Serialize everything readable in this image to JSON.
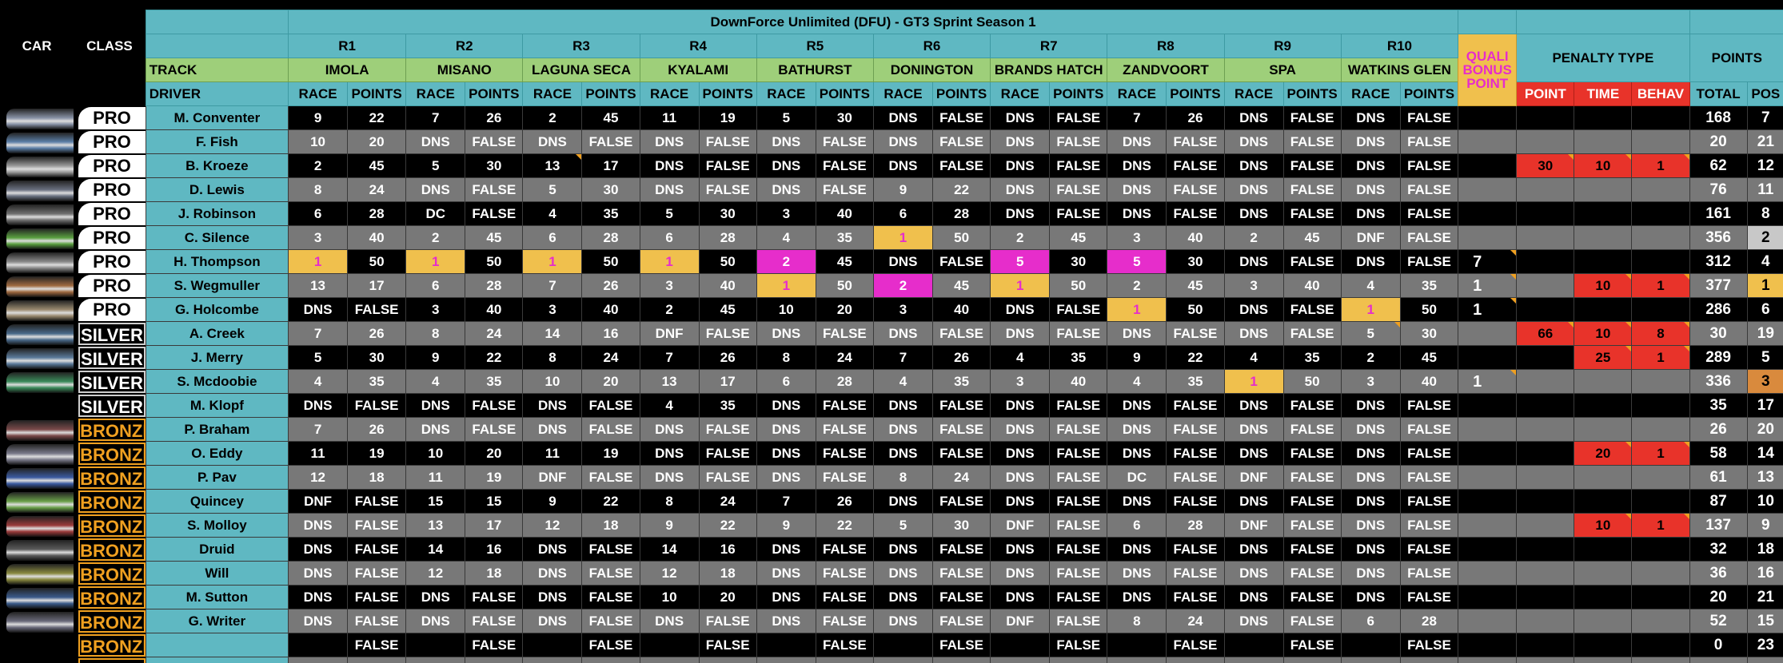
{
  "title": "DownForce Unlimited (DFU) - GT3 Sprint Season 1",
  "header": {
    "car": "CAR",
    "class": "CLASS",
    "track": "TRACK",
    "driver": "DRIVER",
    "race": "RACE",
    "points": "POINTS",
    "quali": "QUALI BONUS POINT",
    "penalty_type": "PENALTY TYPE",
    "penalty_cols": [
      "POINT",
      "TIME",
      "BEHAV"
    ],
    "points_big": "POINTS",
    "total": "TOTAL",
    "pos": "POS"
  },
  "rounds": [
    {
      "id": "R1",
      "track": "IMOLA"
    },
    {
      "id": "R2",
      "track": "MISANO"
    },
    {
      "id": "R3",
      "track": "LAGUNA SECA"
    },
    {
      "id": "R4",
      "track": "KYALAMI"
    },
    {
      "id": "R5",
      "track": "BATHURST"
    },
    {
      "id": "R6",
      "track": "DONINGTON"
    },
    {
      "id": "R7",
      "track": "BRANDS HATCH"
    },
    {
      "id": "R8",
      "track": "ZANDVOORT"
    },
    {
      "id": "R9",
      "track": "SPA"
    },
    {
      "id": "R10",
      "track": "WATKINS GLEN"
    }
  ],
  "colors": {
    "header": "#5fb8c2",
    "track": "#9ecf7a",
    "gold": "#f0c04d",
    "magenta": "#e62dcb",
    "penalty": "#e8332a",
    "gray_row": "#787878",
    "black_row": "#000000",
    "silver_pos": "#c8c8c8",
    "bronze_pos": "#d98a3d"
  },
  "drivers": [
    {
      "name": "M. Conventer",
      "cls": "PRO",
      "car": "#8892a6",
      "results": [
        [
          "9",
          "22"
        ],
        [
          "7",
          "26"
        ],
        [
          "2",
          "45"
        ],
        [
          "11",
          "19"
        ],
        [
          "5",
          "30"
        ],
        [
          "DNS",
          "FALSE"
        ],
        [
          "DNS",
          "FALSE"
        ],
        [
          "7",
          "26"
        ],
        [
          "DNS",
          "FALSE"
        ],
        [
          "DNS",
          "FALSE"
        ]
      ],
      "quali": "",
      "pen": [
        "",
        "",
        ""
      ],
      "total": "168",
      "pos": "7"
    },
    {
      "name": "F. Fish",
      "cls": "PRO",
      "car": "#5c7fa8",
      "results": [
        [
          "10",
          "20"
        ],
        [
          "DNS",
          "FALSE"
        ],
        [
          "DNS",
          "FALSE"
        ],
        [
          "DNS",
          "FALSE"
        ],
        [
          "DNS",
          "FALSE"
        ],
        [
          "DNS",
          "FALSE"
        ],
        [
          "DNS",
          "FALSE"
        ],
        [
          "DNS",
          "FALSE"
        ],
        [
          "DNS",
          "FALSE"
        ],
        [
          "DNS",
          "FALSE"
        ]
      ],
      "quali": "",
      "pen": [
        "",
        "",
        ""
      ],
      "total": "20",
      "pos": "21"
    },
    {
      "name": "B. Kroeze",
      "cls": "PRO",
      "car": "#9a9a9a",
      "results": [
        [
          "2",
          "45"
        ],
        [
          "5",
          "30"
        ],
        [
          "13",
          "17"
        ],
        [
          "DNS",
          "FALSE"
        ],
        [
          "DNS",
          "FALSE"
        ],
        [
          "DNS",
          "FALSE"
        ],
        [
          "DNS",
          "FALSE"
        ],
        [
          "DNS",
          "FALSE"
        ],
        [
          "DNS",
          "FALSE"
        ],
        [
          "DNS",
          "FALSE"
        ]
      ],
      "quali": "",
      "pen": [
        "30",
        "10",
        "1"
      ],
      "total": "62",
      "pos": "12"
    },
    {
      "name": "D. Lewis",
      "cls": "PRO",
      "car": "#6a7080",
      "results": [
        [
          "8",
          "24"
        ],
        [
          "DNS",
          "FALSE"
        ],
        [
          "5",
          "30"
        ],
        [
          "DNS",
          "FALSE"
        ],
        [
          "DNS",
          "FALSE"
        ],
        [
          "9",
          "22"
        ],
        [
          "DNS",
          "FALSE"
        ],
        [
          "DNS",
          "FALSE"
        ],
        [
          "DNS",
          "FALSE"
        ],
        [
          "DNS",
          "FALSE"
        ]
      ],
      "quali": "",
      "pen": [
        "",
        "",
        ""
      ],
      "total": "76",
      "pos": "11"
    },
    {
      "name": "J. Robinson",
      "cls": "PRO",
      "car": "#707070",
      "results": [
        [
          "6",
          "28"
        ],
        [
          "DC",
          "FALSE"
        ],
        [
          "4",
          "35"
        ],
        [
          "5",
          "30"
        ],
        [
          "3",
          "40"
        ],
        [
          "6",
          "28"
        ],
        [
          "DNS",
          "FALSE"
        ],
        [
          "DNS",
          "FALSE"
        ],
        [
          "DNS",
          "FALSE"
        ],
        [
          "DNS",
          "FALSE"
        ]
      ],
      "quali": "",
      "pen": [
        "",
        "",
        ""
      ],
      "total": "161",
      "pos": "8"
    },
    {
      "name": "C. Silence",
      "cls": "PRO",
      "car": "#5aa040",
      "results": [
        [
          "3",
          "40"
        ],
        [
          "2",
          "45"
        ],
        [
          "6",
          "28"
        ],
        [
          "6",
          "28"
        ],
        [
          "4",
          "35"
        ],
        [
          "1",
          "50"
        ],
        [
          "2",
          "45"
        ],
        [
          "3",
          "40"
        ],
        [
          "2",
          "45"
        ],
        [
          "DNF",
          "FALSE"
        ]
      ],
      "quali": "",
      "pen": [
        "",
        "",
        ""
      ],
      "total": "356",
      "pos": "2"
    },
    {
      "name": "H. Thompson",
      "cls": "PRO",
      "car": "#8a8a8a",
      "results": [
        [
          "1",
          "50"
        ],
        [
          "1",
          "50"
        ],
        [
          "1",
          "50"
        ],
        [
          "1",
          "50"
        ],
        [
          "2",
          "45"
        ],
        [
          "DNS",
          "FALSE"
        ],
        [
          "5",
          "30"
        ],
        [
          "5",
          "30"
        ],
        [
          "DNS",
          "FALSE"
        ],
        [
          "DNS",
          "FALSE"
        ]
      ],
      "quali": "7",
      "pen": [
        "",
        "",
        ""
      ],
      "total": "312",
      "pos": "4"
    },
    {
      "name": "S. Wegmuller",
      "cls": "PRO",
      "car": "#a06a40",
      "results": [
        [
          "13",
          "17"
        ],
        [
          "6",
          "28"
        ],
        [
          "7",
          "26"
        ],
        [
          "3",
          "40"
        ],
        [
          "1",
          "50"
        ],
        [
          "2",
          "45"
        ],
        [
          "1",
          "50"
        ],
        [
          "2",
          "45"
        ],
        [
          "3",
          "40"
        ],
        [
          "4",
          "35"
        ]
      ],
      "quali": "1",
      "pen": [
        "",
        "10",
        "1"
      ],
      "total": "377",
      "pos": "1"
    },
    {
      "name": "G. Holcombe",
      "cls": "PRO",
      "car": "#9a8a70",
      "results": [
        [
          "DNS",
          "FALSE"
        ],
        [
          "3",
          "40"
        ],
        [
          "3",
          "40"
        ],
        [
          "2",
          "45"
        ],
        [
          "10",
          "20"
        ],
        [
          "3",
          "40"
        ],
        [
          "DNS",
          "FALSE"
        ],
        [
          "1",
          "50"
        ],
        [
          "DNS",
          "FALSE"
        ],
        [
          "1",
          "50"
        ]
      ],
      "quali": "1",
      "pen": [
        "",
        "",
        ""
      ],
      "total": "286",
      "pos": "6"
    },
    {
      "name": "A. Creek",
      "cls": "SILVER",
      "car": "#4a6a8a",
      "results": [
        [
          "7",
          "26"
        ],
        [
          "8",
          "24"
        ],
        [
          "14",
          "16"
        ],
        [
          "DNF",
          "FALSE"
        ],
        [
          "DNS",
          "FALSE"
        ],
        [
          "DNS",
          "FALSE"
        ],
        [
          "DNS",
          "FALSE"
        ],
        [
          "DNS",
          "FALSE"
        ],
        [
          "DNS",
          "FALSE"
        ],
        [
          "5",
          "30"
        ]
      ],
      "quali": "",
      "pen": [
        "66",
        "10",
        "8"
      ],
      "total": "30",
      "pos": "19"
    },
    {
      "name": "J. Merry",
      "cls": "SILVER",
      "car": "#5a7a9a",
      "results": [
        [
          "5",
          "30"
        ],
        [
          "9",
          "22"
        ],
        [
          "8",
          "24"
        ],
        [
          "7",
          "26"
        ],
        [
          "8",
          "24"
        ],
        [
          "7",
          "26"
        ],
        [
          "4",
          "35"
        ],
        [
          "9",
          "22"
        ],
        [
          "4",
          "35"
        ],
        [
          "2",
          "45"
        ]
      ],
      "quali": "",
      "pen": [
        "",
        "25",
        "1"
      ],
      "total": "289",
      "pos": "5"
    },
    {
      "name": "S. Mcdoobie",
      "cls": "SILVER",
      "car": "#3a8a5a",
      "results": [
        [
          "4",
          "35"
        ],
        [
          "4",
          "35"
        ],
        [
          "10",
          "20"
        ],
        [
          "13",
          "17"
        ],
        [
          "6",
          "28"
        ],
        [
          "4",
          "35"
        ],
        [
          "3",
          "40"
        ],
        [
          "4",
          "35"
        ],
        [
          "1",
          "50"
        ],
        [
          "3",
          "40"
        ]
      ],
      "quali": "1",
      "pen": [
        "",
        "",
        ""
      ],
      "total": "336",
      "pos": "3"
    },
    {
      "name": "M. Klopf",
      "cls": "SILVER",
      "car": "",
      "results": [
        [
          "DNS",
          "FALSE"
        ],
        [
          "DNS",
          "FALSE"
        ],
        [
          "DNS",
          "FALSE"
        ],
        [
          "4",
          "35"
        ],
        [
          "DNS",
          "FALSE"
        ],
        [
          "DNS",
          "FALSE"
        ],
        [
          "DNS",
          "FALSE"
        ],
        [
          "DNS",
          "FALSE"
        ],
        [
          "DNS",
          "FALSE"
        ],
        [
          "DNS",
          "FALSE"
        ]
      ],
      "quali": "",
      "pen": [
        "",
        "",
        ""
      ],
      "total": "35",
      "pos": "17"
    },
    {
      "name": "P. Braham",
      "cls": "BRONZE",
      "car": "#7a4a4a",
      "results": [
        [
          "7",
          "26"
        ],
        [
          "DNS",
          "FALSE"
        ],
        [
          "DNS",
          "FALSE"
        ],
        [
          "DNS",
          "FALSE"
        ],
        [
          "DNS",
          "FALSE"
        ],
        [
          "DNS",
          "FALSE"
        ],
        [
          "DNS",
          "FALSE"
        ],
        [
          "DNS",
          "FALSE"
        ],
        [
          "DNS",
          "FALSE"
        ],
        [
          "DNS",
          "FALSE"
        ]
      ],
      "quali": "",
      "pen": [
        "",
        "",
        ""
      ],
      "total": "26",
      "pos": "20"
    },
    {
      "name": "O. Eddy",
      "cls": "BRONZE",
      "car": "#7a7a8a",
      "results": [
        [
          "11",
          "19"
        ],
        [
          "10",
          "20"
        ],
        [
          "11",
          "19"
        ],
        [
          "DNS",
          "FALSE"
        ],
        [
          "DNS",
          "FALSE"
        ],
        [
          "DNS",
          "FALSE"
        ],
        [
          "DNS",
          "FALSE"
        ],
        [
          "DNS",
          "FALSE"
        ],
        [
          "DNS",
          "FALSE"
        ],
        [
          "DNS",
          "FALSE"
        ]
      ],
      "quali": "",
      "pen": [
        "",
        "20",
        "1"
      ],
      "total": "58",
      "pos": "14"
    },
    {
      "name": "P. Pav",
      "cls": "BRONZE",
      "car": "#3a5aa0",
      "results": [
        [
          "12",
          "18"
        ],
        [
          "11",
          "19"
        ],
        [
          "DNF",
          "FALSE"
        ],
        [
          "DNS",
          "FALSE"
        ],
        [
          "DNS",
          "FALSE"
        ],
        [
          "8",
          "24"
        ],
        [
          "DNS",
          "FALSE"
        ],
        [
          "DC",
          "FALSE"
        ],
        [
          "DNF",
          "FALSE"
        ],
        [
          "DNS",
          "FALSE"
        ]
      ],
      "quali": "",
      "pen": [
        "",
        "",
        ""
      ],
      "total": "61",
      "pos": "13"
    },
    {
      "name": "Quincey",
      "cls": "BRONZE",
      "car": "#6aa04a",
      "results": [
        [
          "DNF",
          "FALSE"
        ],
        [
          "15",
          "15"
        ],
        [
          "9",
          "22"
        ],
        [
          "8",
          "24"
        ],
        [
          "7",
          "26"
        ],
        [
          "DNS",
          "FALSE"
        ],
        [
          "DNS",
          "FALSE"
        ],
        [
          "DNS",
          "FALSE"
        ],
        [
          "DNS",
          "FALSE"
        ],
        [
          "DNS",
          "FALSE"
        ]
      ],
      "quali": "",
      "pen": [
        "",
        "",
        ""
      ],
      "total": "87",
      "pos": "10"
    },
    {
      "name": "S. Molloy",
      "cls": "BRONZE",
      "car": "#9a3a3a",
      "results": [
        [
          "DNS",
          "FALSE"
        ],
        [
          "13",
          "17"
        ],
        [
          "12",
          "18"
        ],
        [
          "9",
          "22"
        ],
        [
          "9",
          "22"
        ],
        [
          "5",
          "30"
        ],
        [
          "DNF",
          "FALSE"
        ],
        [
          "6",
          "28"
        ],
        [
          "DNF",
          "FALSE"
        ],
        [
          "DNS",
          "FALSE"
        ]
      ],
      "quali": "",
      "pen": [
        "",
        "10",
        "1"
      ],
      "total": "137",
      "pos": "9"
    },
    {
      "name": "Druid",
      "cls": "BRONZE",
      "car": "#5a5a5a",
      "results": [
        [
          "DNS",
          "FALSE"
        ],
        [
          "14",
          "16"
        ],
        [
          "DNS",
          "FALSE"
        ],
        [
          "14",
          "16"
        ],
        [
          "DNS",
          "FALSE"
        ],
        [
          "DNS",
          "FALSE"
        ],
        [
          "DNS",
          "FALSE"
        ],
        [
          "DNS",
          "FALSE"
        ],
        [
          "DNS",
          "FALSE"
        ],
        [
          "DNS",
          "FALSE"
        ]
      ],
      "quali": "",
      "pen": [
        "",
        "",
        ""
      ],
      "total": "32",
      "pos": "18"
    },
    {
      "name": "Will",
      "cls": "BRONZE",
      "car": "#8a8a40",
      "results": [
        [
          "DNS",
          "FALSE"
        ],
        [
          "12",
          "18"
        ],
        [
          "DNS",
          "FALSE"
        ],
        [
          "12",
          "18"
        ],
        [
          "DNS",
          "FALSE"
        ],
        [
          "DNS",
          "FALSE"
        ],
        [
          "DNS",
          "FALSE"
        ],
        [
          "DNS",
          "FALSE"
        ],
        [
          "DNS",
          "FALSE"
        ],
        [
          "DNS",
          "FALSE"
        ]
      ],
      "quali": "",
      "pen": [
        "",
        "",
        ""
      ],
      "total": "36",
      "pos": "16"
    },
    {
      "name": "M. Sutton",
      "cls": "BRONZE",
      "car": "#3a5a8a",
      "results": [
        [
          "DNS",
          "FALSE"
        ],
        [
          "DNS",
          "FALSE"
        ],
        [
          "DNS",
          "FALSE"
        ],
        [
          "10",
          "20"
        ],
        [
          "DNS",
          "FALSE"
        ],
        [
          "DNS",
          "FALSE"
        ],
        [
          "DNS",
          "FALSE"
        ],
        [
          "DNS",
          "FALSE"
        ],
        [
          "DNS",
          "FALSE"
        ],
        [
          "DNS",
          "FALSE"
        ]
      ],
      "quali": "",
      "pen": [
        "",
        "",
        ""
      ],
      "total": "20",
      "pos": "21"
    },
    {
      "name": "G. Writer",
      "cls": "BRONZE",
      "car": "#6a6a7a",
      "results": [
        [
          "DNS",
          "FALSE"
        ],
        [
          "DNS",
          "FALSE"
        ],
        [
          "DNS",
          "FALSE"
        ],
        [
          "DNS",
          "FALSE"
        ],
        [
          "DNS",
          "FALSE"
        ],
        [
          "DNS",
          "FALSE"
        ],
        [
          "DNF",
          "FALSE"
        ],
        [
          "8",
          "24"
        ],
        [
          "DNS",
          "FALSE"
        ],
        [
          "6",
          "28"
        ]
      ],
      "quali": "",
      "pen": [
        "",
        "",
        ""
      ],
      "total": "52",
      "pos": "15"
    },
    {
      "name": "",
      "cls": "BRONZE",
      "car": "",
      "results": [
        [
          "",
          "FALSE"
        ],
        [
          "",
          "FALSE"
        ],
        [
          "",
          "FALSE"
        ],
        [
          "",
          "FALSE"
        ],
        [
          "",
          "FALSE"
        ],
        [
          "",
          "FALSE"
        ],
        [
          "",
          "FALSE"
        ],
        [
          "",
          "FALSE"
        ],
        [
          "",
          "FALSE"
        ],
        [
          "",
          "FALSE"
        ]
      ],
      "quali": "",
      "pen": [
        "",
        "",
        ""
      ],
      "total": "0",
      "pos": "23"
    },
    {
      "name": "",
      "cls": "BRONZE",
      "car": "",
      "results": [
        [
          "",
          ""
        ],
        [
          "",
          ""
        ],
        [
          "",
          ""
        ],
        [
          "",
          ""
        ],
        [
          "",
          ""
        ],
        [
          "",
          ""
        ],
        [
          "",
          ""
        ],
        [
          "",
          ""
        ],
        [
          "",
          ""
        ],
        [
          "",
          ""
        ]
      ],
      "quali": "",
      "pen": [
        "",
        "",
        ""
      ],
      "total": "",
      "pos": ""
    }
  ]
}
